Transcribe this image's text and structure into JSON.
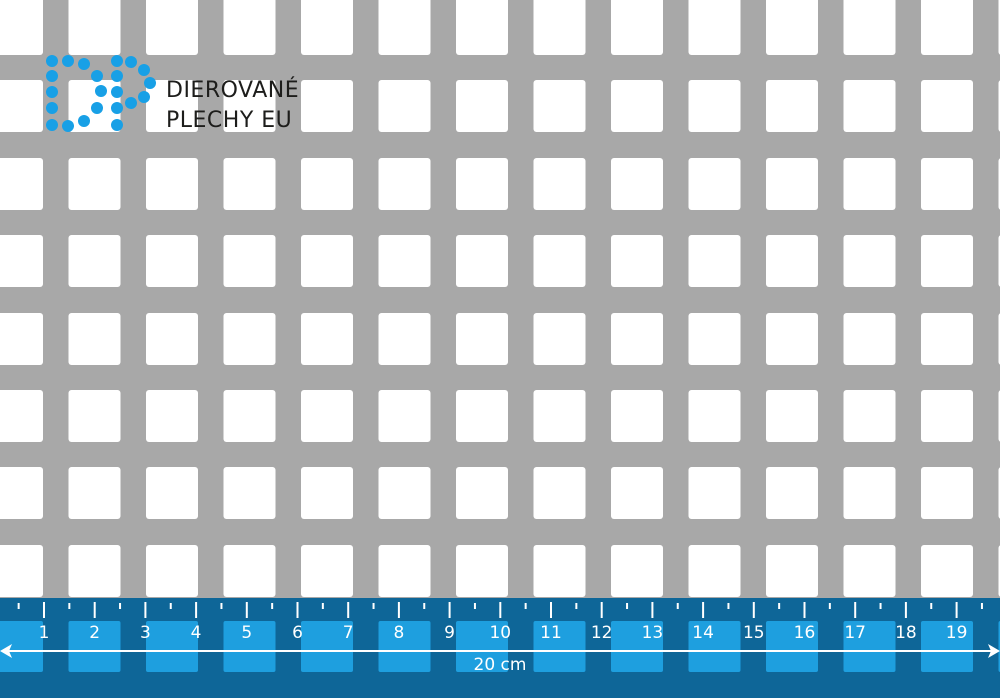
{
  "logo": {
    "line1": "DIEROVANÉ",
    "line2": "PLECHY EU",
    "color": "#18a0e6"
  },
  "sheet": {
    "metal_color": "#a8a8a8",
    "hole_color": "#ffffff",
    "hole_shape": "square"
  },
  "ruler": {
    "band_color": "#0e6698",
    "hole_color": "#1e9fdf",
    "numbers": [
      "1",
      "2",
      "3",
      "4",
      "5",
      "6",
      "7",
      "8",
      "9",
      "10",
      "11",
      "12",
      "13",
      "14",
      "15",
      "16",
      "17",
      "18",
      "19"
    ],
    "length_label": "20 cm"
  }
}
